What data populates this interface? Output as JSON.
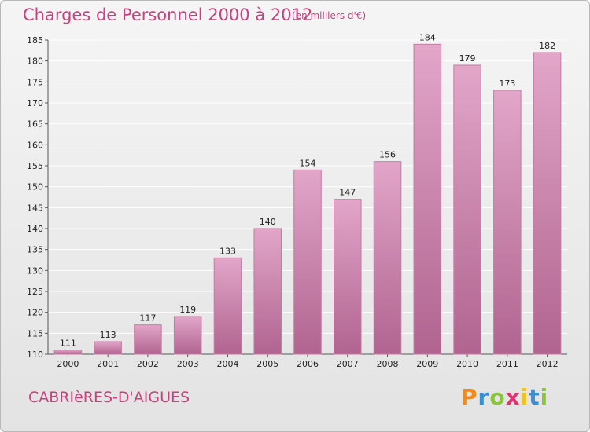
{
  "header": {
    "title": "Charges de Personnel 2000 à 2012",
    "subtitle": "(en milliers d'€)"
  },
  "footer": {
    "commune": "CABRIèRES-D'AIGUES",
    "logo": {
      "letters": [
        "P",
        "r",
        "o",
        "x",
        "i",
        "t",
        "i"
      ],
      "colors": [
        "#f18a1c",
        "#3a8fd4",
        "#8bc43f",
        "#e2316f",
        "#f3c11c",
        "#3a8fd4",
        "#8bc43f"
      ]
    }
  },
  "colors": {
    "bar_light": "#e2a6c9",
    "bar_dark": "#b0648f",
    "bar_edge": "#c47aa3",
    "text_accent": "#c8417e",
    "grid": "#ffffff"
  },
  "chart_data": {
    "type": "bar",
    "title": "Charges de Personnel 2000 à 2012",
    "subtitle": "(en milliers d'€)",
    "categories": [
      "2000",
      "2001",
      "2002",
      "2003",
      "2004",
      "2005",
      "2006",
      "2007",
      "2008",
      "2009",
      "2010",
      "2011",
      "2012"
    ],
    "values": [
      111,
      113,
      117,
      119,
      133,
      140,
      154,
      147,
      156,
      184,
      179,
      173,
      182
    ],
    "ylim": [
      110,
      185
    ],
    "yticks": [
      110,
      115,
      120,
      125,
      130,
      135,
      140,
      145,
      150,
      155,
      160,
      165,
      170,
      175,
      180,
      185
    ],
    "grid": true,
    "data_labels": true
  }
}
